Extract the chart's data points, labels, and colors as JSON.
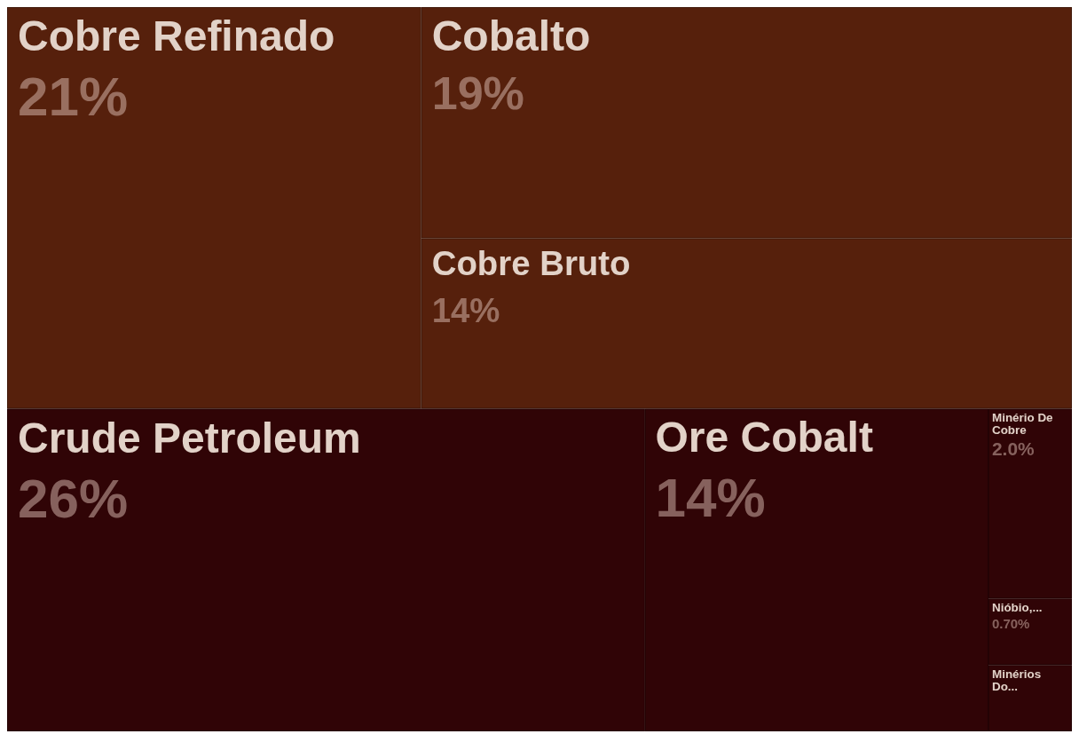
{
  "chart_data": {
    "type": "other",
    "categories": [
      "Cobre Refinado",
      "Cobalto",
      "Cobre Bruto",
      "Crude Petroleum",
      "Ore Cobalt",
      "Minério De Cobre",
      "Nióbio,...",
      "Minérios Do..."
    ],
    "values": [
      21,
      19,
      14,
      26,
      14,
      2.0,
      0.7,
      null
    ],
    "value_labels": [
      "21%",
      "19%",
      "14%",
      "26%",
      "14%",
      "2.0%",
      "0.70%",
      null
    ],
    "colors": [
      "#56200c",
      "#56200c",
      "#56200c",
      "#300406",
      "#300406",
      "#300406",
      "#300406",
      "#300406"
    ]
  }
}
